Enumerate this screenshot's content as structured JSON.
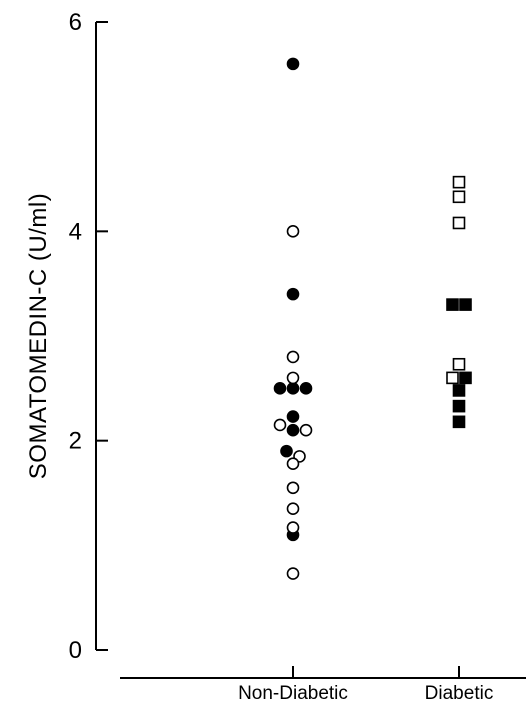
{
  "chart_data": {
    "type": "scatter",
    "title": "",
    "ylabel": "SOMATOMEDIN-C (U/ml)",
    "xlabel": "",
    "ylim": [
      0,
      6
    ],
    "yticks": [
      0,
      2,
      4,
      6
    ],
    "ytick_labels": [
      "0",
      "2",
      "4",
      "6"
    ],
    "categories": [
      "Non-Diabetic",
      "Diabetic"
    ],
    "grid": false,
    "legend": "none",
    "series": [
      {
        "category": "Non-Diabetic",
        "marker": "circle",
        "filled": true,
        "points": [
          {
            "dx": 0,
            "y": 5.6
          },
          {
            "dx": 0,
            "y": 3.4
          },
          {
            "dx": -1,
            "y": 2.5
          },
          {
            "dx": 0,
            "y": 2.5
          },
          {
            "dx": 1,
            "y": 2.5
          },
          {
            "dx": 0,
            "y": 2.23
          },
          {
            "dx": -0.5,
            "y": 1.9
          },
          {
            "dx": 0,
            "y": 2.1
          },
          {
            "dx": 0,
            "y": 1.1
          }
        ]
      },
      {
        "category": "Non-Diabetic",
        "marker": "circle",
        "filled": false,
        "points": [
          {
            "dx": 0,
            "y": 4.0
          },
          {
            "dx": 0,
            "y": 2.8
          },
          {
            "dx": 0,
            "y": 2.6
          },
          {
            "dx": -1,
            "y": 2.15
          },
          {
            "dx": 1,
            "y": 2.1
          },
          {
            "dx": 0.5,
            "y": 1.85
          },
          {
            "dx": 0,
            "y": 1.78
          },
          {
            "dx": 0,
            "y": 1.55
          },
          {
            "dx": 0,
            "y": 1.35
          },
          {
            "dx": 0,
            "y": 1.17
          },
          {
            "dx": 0,
            "y": 0.73
          }
        ]
      },
      {
        "category": "Diabetic",
        "marker": "square",
        "filled": false,
        "points": [
          {
            "dx": 0,
            "y": 4.47
          },
          {
            "dx": 0,
            "y": 4.33
          },
          {
            "dx": 0,
            "y": 4.08
          },
          {
            "dx": 0,
            "y": 2.73
          },
          {
            "dx": -0.5,
            "y": 2.6
          }
        ]
      },
      {
        "category": "Diabetic",
        "marker": "square",
        "filled": true,
        "points": [
          {
            "dx": -0.5,
            "y": 3.3
          },
          {
            "dx": 0.5,
            "y": 3.3
          },
          {
            "dx": 0.5,
            "y": 2.6
          },
          {
            "dx": 0,
            "y": 2.48
          },
          {
            "dx": 0,
            "y": 2.33
          },
          {
            "dx": 0,
            "y": 2.18
          }
        ]
      }
    ]
  }
}
